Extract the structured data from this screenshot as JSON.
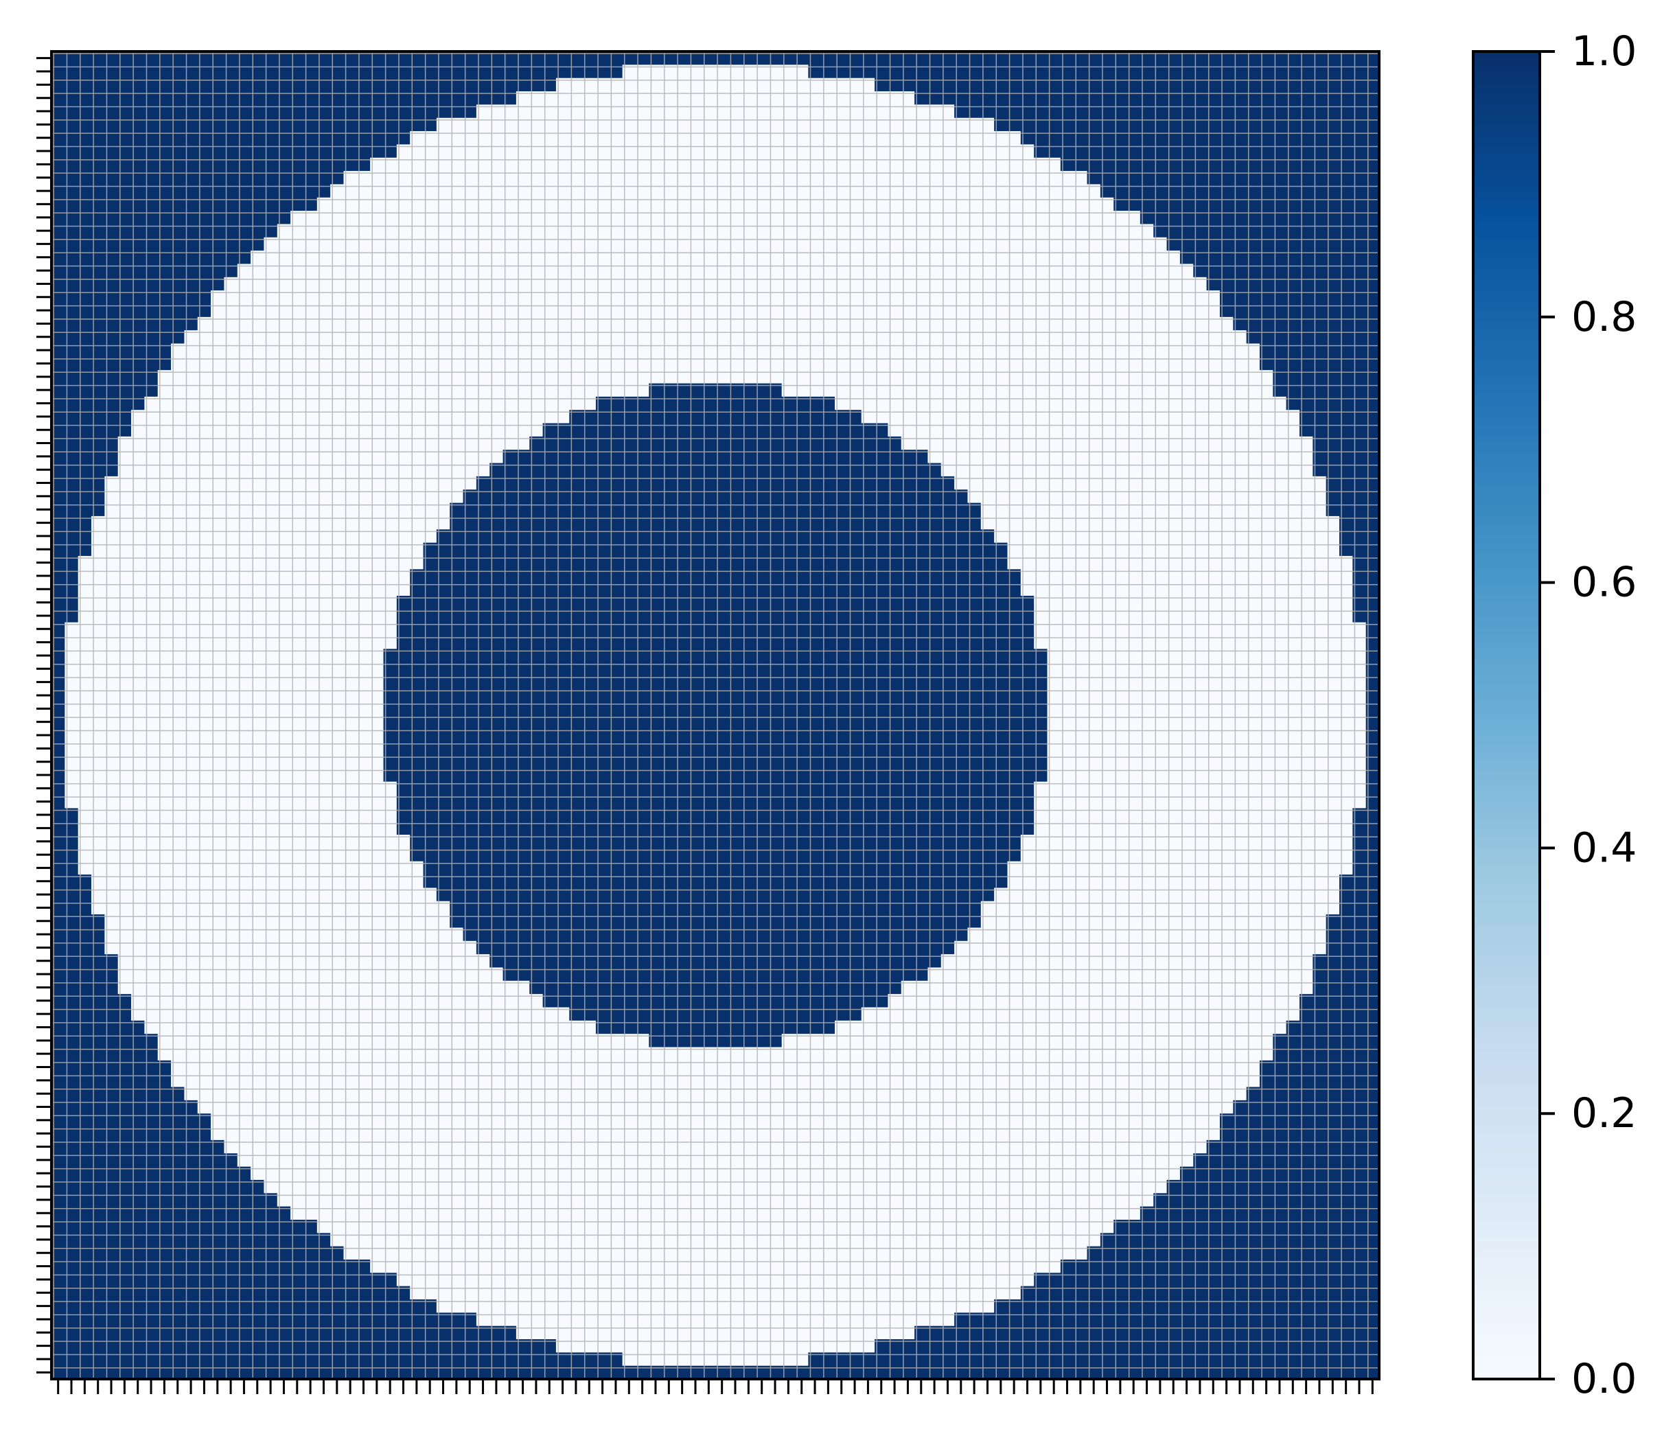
{
  "chart_data": {
    "type": "heatmap",
    "title": "",
    "xlabel": "",
    "ylabel": "",
    "grid": true,
    "grid_color": "#b0b0b0",
    "colormap": "Blues",
    "colormap_stops": [
      "#f7fbff",
      "#deebf7",
      "#c6dbef",
      "#9ecae1",
      "#6baed6",
      "#4292c6",
      "#2171b5",
      "#08519c",
      "#08306b"
    ],
    "n_cells": [
      100,
      100
    ],
    "x_range": [
      0,
      100
    ],
    "y_range": [
      0,
      100
    ],
    "pattern": "ring",
    "center": [
      50,
      50
    ],
    "inner_radius": 25,
    "outer_radius": 49,
    "inside_inner_value": 1.0,
    "ring_value": 0.0,
    "outside_outer_value": 1.0,
    "colorbar": {
      "min": 0.0,
      "max": 1.0,
      "ticks": [
        0.0,
        0.2,
        0.4,
        0.6,
        0.8,
        1.0
      ],
      "tick_labels": [
        "0.0",
        "0.2",
        "0.4",
        "0.6",
        "0.8",
        "1.0"
      ]
    }
  }
}
